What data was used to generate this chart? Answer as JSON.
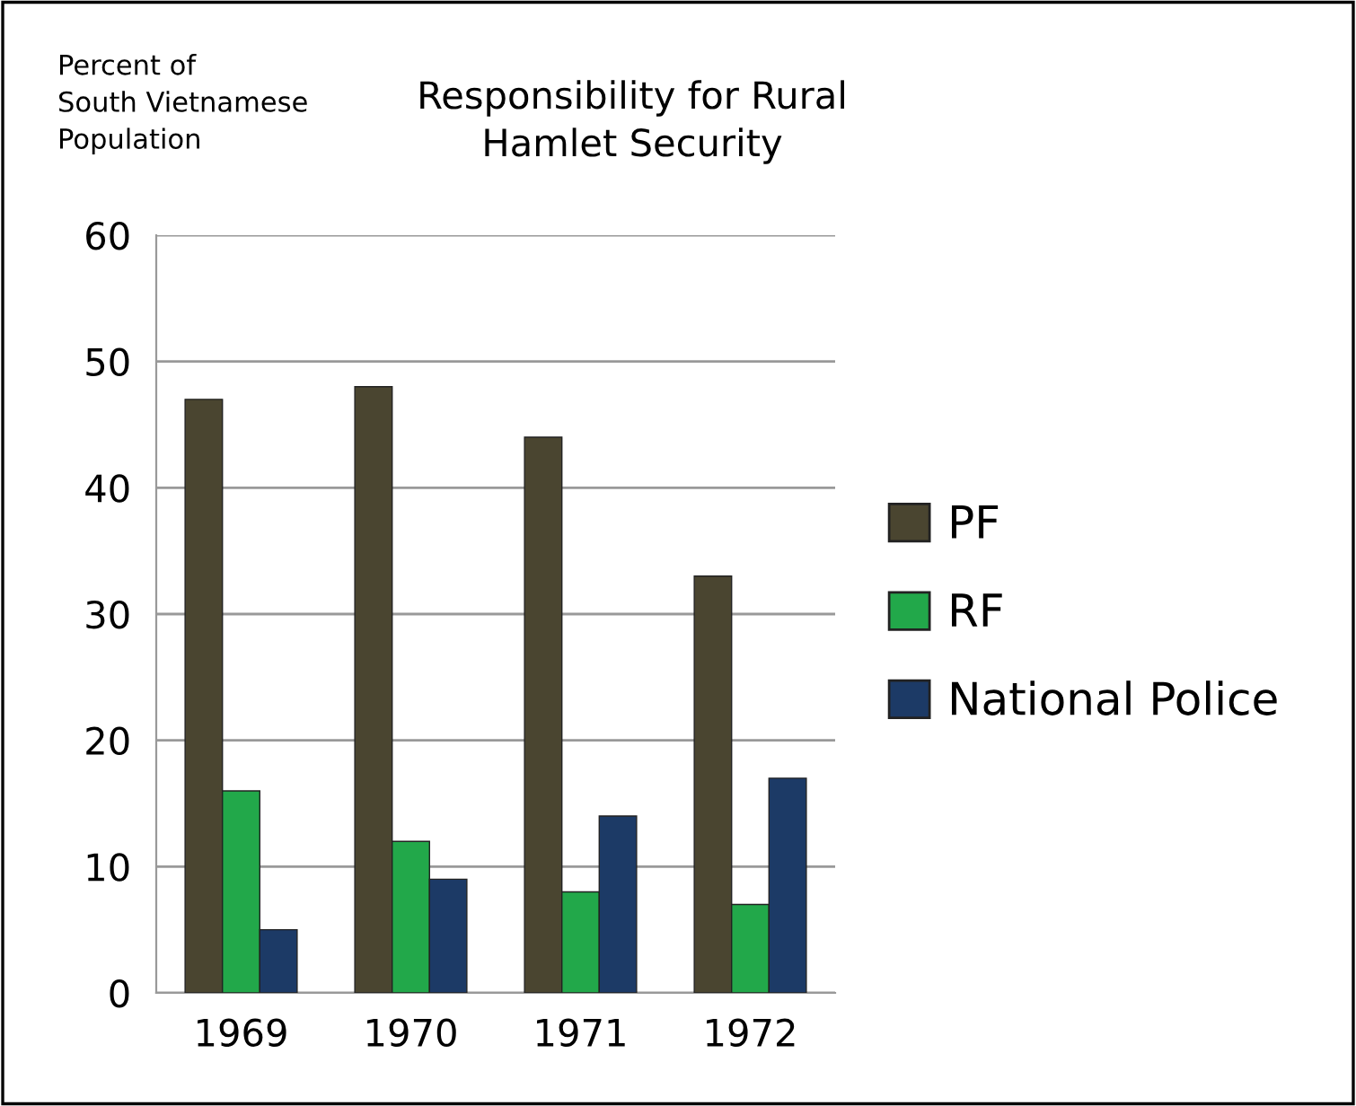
{
  "chart_data": {
    "type": "bar",
    "title": "Responsibility for Rural\nHamlet Security",
    "ylabel": "Percent of\nSouth Vietnamese\nPopulation",
    "categories": [
      "1969",
      "1970",
      "1971",
      "1972"
    ],
    "series": [
      {
        "name": "PF",
        "color": "#4a4530",
        "values": [
          47,
          48,
          44,
          33
        ]
      },
      {
        "name": "RF",
        "color": "#22a84a",
        "values": [
          16,
          12,
          8,
          7
        ]
      },
      {
        "name": "National Police",
        "color": "#1c3a66",
        "values": [
          5,
          9,
          14,
          17
        ]
      }
    ],
    "ylim": [
      0,
      60
    ],
    "yticks": [
      0,
      10,
      20,
      30,
      40,
      50,
      60
    ],
    "grid": "y",
    "legend": "right"
  }
}
